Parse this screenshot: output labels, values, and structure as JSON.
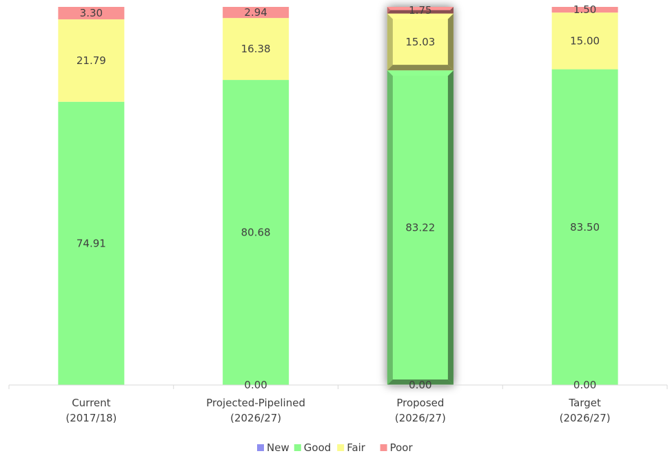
{
  "chart_data": {
    "type": "bar",
    "stacked": true,
    "categories": [
      [
        "Current",
        "(2017/18)"
      ],
      [
        "Projected-Pipelined",
        "(2026/27)"
      ],
      [
        "Proposed",
        "(2026/27)"
      ],
      [
        "Target",
        "(2026/27)"
      ]
    ],
    "series": [
      {
        "name": "New",
        "color": "#8f8ff0",
        "values": [
          0,
          0,
          0,
          0
        ],
        "labels": [
          "",
          "0.00",
          "0.00",
          "0.00"
        ]
      },
      {
        "name": "Good",
        "color": "#8cfb8c",
        "values": [
          74.91,
          80.68,
          83.22,
          83.5
        ],
        "labels": [
          "74.91",
          "80.68",
          "83.22",
          "83.50"
        ]
      },
      {
        "name": "Fair",
        "color": "#fbfb8f",
        "values": [
          21.79,
          16.38,
          15.03,
          15.0
        ],
        "labels": [
          "21.79",
          "16.38",
          "15.03",
          "15.00"
        ]
      },
      {
        "name": "Poor",
        "color": "#f99393",
        "values": [
          3.3,
          2.94,
          1.75,
          1.5
        ],
        "labels": [
          "3.30",
          "2.94",
          "1.75",
          "1.50"
        ]
      }
    ],
    "highlighted_category_index": 2,
    "ylim": [
      0,
      100
    ],
    "grid": false,
    "legend_position": "bottom"
  }
}
